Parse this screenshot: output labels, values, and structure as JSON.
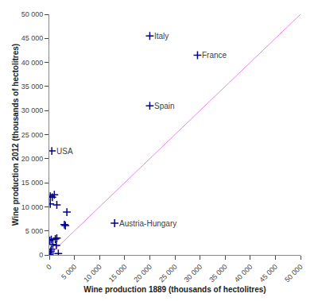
{
  "chart_data": {
    "type": "scatter",
    "xlabel": "Wine production 1889 (thousands of hectolitres)",
    "ylabel": "Wine production 2012 (thousands of hectolitres)",
    "xlim": [
      0,
      50000
    ],
    "ylim": [
      0,
      50000
    ],
    "xticks": [
      0,
      {
        "value": 5000,
        "label": "5 000"
      },
      {
        "value": 10000,
        "label": "10 000"
      },
      {
        "value": 15000,
        "label": "15 000"
      },
      {
        "value": 20000,
        "label": "20 000"
      },
      {
        "value": 25000,
        "label": "25 000"
      },
      {
        "value": 30000,
        "label": "30 000"
      },
      {
        "value": 35000,
        "label": "35 000"
      },
      {
        "value": 40000,
        "label": "40 000"
      },
      {
        "value": 45000,
        "label": "45 000"
      },
      {
        "value": 50000,
        "label": "50 000"
      }
    ],
    "yticks": [
      0,
      {
        "value": 5000,
        "label": "5 000"
      },
      {
        "value": 10000,
        "label": "10 000"
      },
      {
        "value": 15000,
        "label": "15 000"
      },
      {
        "value": 20000,
        "label": "20 000"
      },
      {
        "value": 25000,
        "label": "25 000"
      },
      {
        "value": 30000,
        "label": "30 000"
      },
      {
        "value": 35000,
        "label": "35 000"
      },
      {
        "value": 40000,
        "label": "40 000"
      },
      {
        "value": 45000,
        "label": "45 000"
      },
      {
        "value": 50000,
        "label": "50 000"
      }
    ],
    "grid": false,
    "series": [
      {
        "type": "line",
        "color": "violet",
        "line_style": "solid",
        "x": [
          0,
          50000
        ],
        "values": [
          0,
          50000
        ]
      },
      {
        "type": "scatter",
        "color": "#00008B",
        "marker": "+",
        "x": [
          20000,
          29500,
          20000,
          500,
          13000,
          200,
          600,
          1000,
          200,
          1500,
          3500,
          3000,
          3200,
          100,
          400,
          1200,
          1500,
          700,
          1400,
          400,
          300,
          200,
          1800,
          100
        ],
        "values": [
          45500,
          41500,
          31000,
          21600,
          6600,
          12200,
          12000,
          12500,
          10600,
          10400,
          8900,
          6300,
          6100,
          3000,
          3200,
          3300,
          3500,
          2200,
          2000,
          1200,
          800,
          400,
          300,
          100
        ]
      }
    ],
    "annotations": [
      {
        "text": "Italy",
        "x": 20000,
        "y": 45500
      },
      {
        "text": "France",
        "x": 29500,
        "y": 41500
      },
      {
        "text": "Spain",
        "x": 20000,
        "y": 31000
      },
      {
        "text": "USA",
        "x": 500,
        "y": 21600
      },
      {
        "text": "Austria-Hungary",
        "x": 13000,
        "y": 6600
      }
    ]
  }
}
